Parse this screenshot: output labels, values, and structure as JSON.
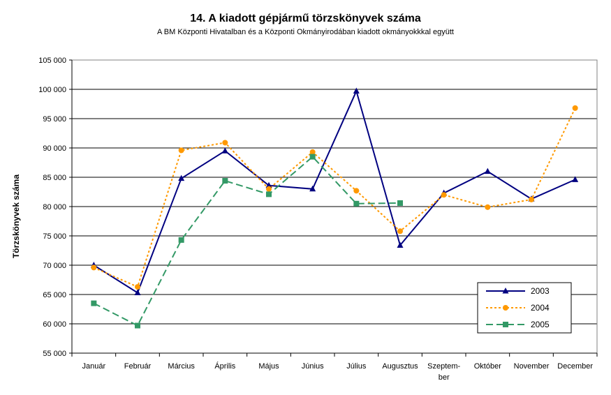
{
  "chart_data": {
    "type": "line",
    "title": "14. A  kiadott gépjármű  törzskönyvek száma",
    "subtitle": "A BM Központi Hivatalban és a Központi Okmányirodában kiadott okmányokkkal együtt",
    "ylabel": "Törzskönyvek száma",
    "xlabel": "",
    "ylim": [
      55000,
      105000
    ],
    "yticks": [
      55000,
      60000,
      65000,
      70000,
      75000,
      80000,
      85000,
      90000,
      95000,
      100000,
      105000
    ],
    "ytick_labels": [
      "55 000",
      "60 000",
      "65 000",
      "70 000",
      "75 000",
      "80 000",
      "85 000",
      "90 000",
      "95 000",
      "100 000",
      "105 000"
    ],
    "categories": [
      "Január",
      "Február",
      "Március",
      "Április",
      "Május",
      "Június",
      "Július",
      "Augusztus",
      "Szeptem-\nber",
      "Október",
      "November",
      "December"
    ],
    "grid": "horizontal",
    "legend_position": "bottom-right",
    "series": [
      {
        "name": "2003",
        "color": "#000080",
        "marker": "triangle",
        "dash": "solid",
        "values": [
          70000,
          65300,
          84800,
          89500,
          83600,
          83000,
          99700,
          73400,
          82300,
          86000,
          81300,
          84600
        ]
      },
      {
        "name": "2004",
        "color": "#FF9900",
        "marker": "circle",
        "dash": "dotted",
        "values": [
          69600,
          66300,
          89600,
          90900,
          83000,
          89300,
          82700,
          75800,
          82000,
          79900,
          81200,
          96800
        ]
      },
      {
        "name": "2005",
        "color": "#339966",
        "marker": "square",
        "dash": "dashed",
        "values": [
          63500,
          59700,
          74300,
          84400,
          82100,
          88500,
          80500,
          80600,
          null,
          null,
          null,
          null
        ]
      }
    ]
  }
}
